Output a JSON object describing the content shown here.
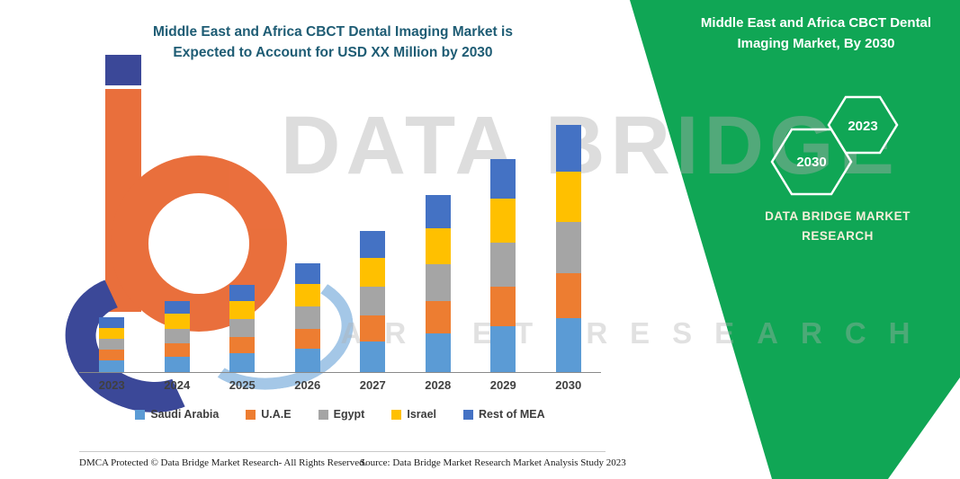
{
  "title": {
    "line1": "Middle East and Africa CBCT Dental Imaging Market is",
    "line2": "Expected to Account for USD XX Million by 2030"
  },
  "banner": {
    "green": "#10A655",
    "title_line1": "Middle East and Africa CBCT Dental",
    "title_line2": "Imaging Market, By 2030",
    "hex_left_label": "2030",
    "hex_right_label": "2023",
    "brand_line1": "DATA BRIDGE MARKET",
    "brand_line2": "RESEARCH"
  },
  "watermark": {
    "line1": "DATA BRIDGE",
    "line2": "MARKET RESEARCH"
  },
  "chart_data": {
    "type": "bar",
    "stacked": true,
    "title": "Middle East and Africa CBCT Dental Imaging Market is Expected to Account for USD XX Million by 2030",
    "xlabel": "",
    "ylabel": "",
    "units": "USD Million (values masked as XX in source image)",
    "values_are_estimates": true,
    "y_axis_labels_visible": false,
    "ylim": [
      0,
      32
    ],
    "legend_position": "bottom",
    "categories": [
      "2023",
      "2024",
      "2025",
      "2026",
      "2027",
      "2028",
      "2029",
      "2030"
    ],
    "series": [
      {
        "name": "Saudi Arabia",
        "color": "#5B9BD5",
        "values": [
          1.4,
          1.8,
          2.2,
          2.7,
          3.6,
          4.5,
          5.4,
          6.3
        ]
      },
      {
        "name": "U.A.E",
        "color": "#ED7D31",
        "values": [
          1.2,
          1.6,
          1.9,
          2.4,
          3.0,
          3.8,
          4.6,
          5.3
        ]
      },
      {
        "name": "Egypt",
        "color": "#A5A5A5",
        "values": [
          1.3,
          1.7,
          2.1,
          2.6,
          3.4,
          4.3,
          5.2,
          6.0
        ]
      },
      {
        "name": "Israel",
        "color": "#FFC000",
        "values": [
          1.3,
          1.7,
          2.1,
          2.6,
          3.4,
          4.2,
          5.1,
          5.9
        ]
      },
      {
        "name": "Rest of MEA",
        "color": "#4472C4",
        "values": [
          1.2,
          1.5,
          1.9,
          2.4,
          3.1,
          3.9,
          4.7,
          5.5
        ]
      }
    ]
  },
  "footer": {
    "left": "DMCA Protected © Data Bridge Market Research-  All Rights Reserved.",
    "source": "Source: Data Bridge Market Research  Market Analysis Study 2023"
  }
}
